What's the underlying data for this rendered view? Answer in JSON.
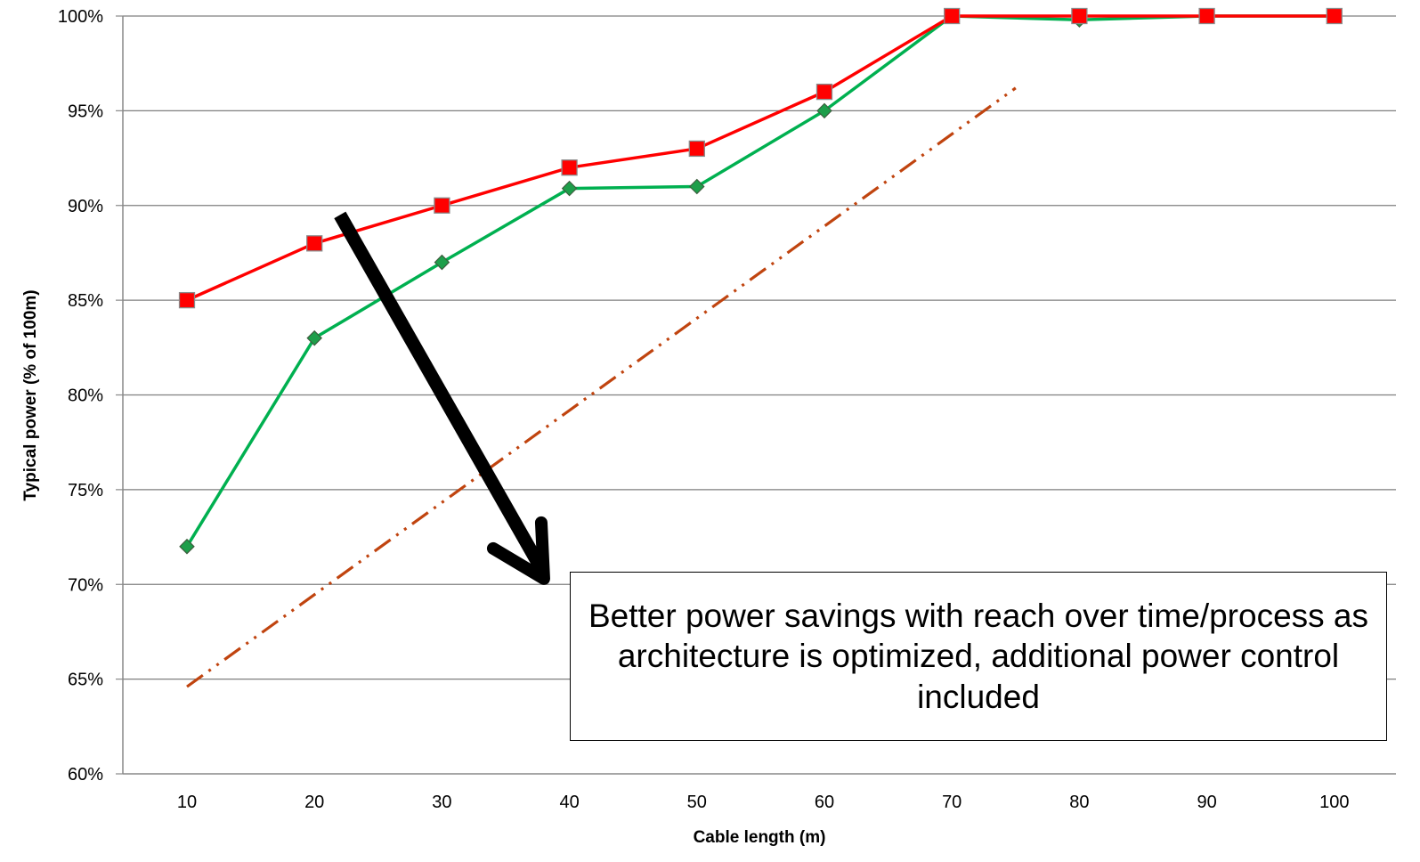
{
  "chart_data": {
    "type": "line",
    "xlabel": "Cable length (m)",
    "ylabel": "Typical power  (% of 100m)",
    "ylim": [
      60,
      100
    ],
    "yticks": [
      "60%",
      "65%",
      "70%",
      "75%",
      "80%",
      "85%",
      "90%",
      "95%",
      "100%"
    ],
    "grid": true,
    "categories": [
      "10",
      "20",
      "30",
      "40",
      "50",
      "60",
      "70",
      "80",
      "90",
      "100"
    ],
    "series": [
      {
        "color": "#FF0000",
        "marker": "square",
        "values": [
          85,
          88,
          90,
          92,
          93,
          96,
          100,
          100,
          100,
          100
        ]
      },
      {
        "color": "#00B050",
        "marker": "diamond",
        "values": [
          72,
          83,
          87,
          90.9,
          91,
          95,
          100,
          99.8,
          100,
          100
        ]
      }
    ],
    "trend": {
      "color": "#C0440F",
      "style": "dash-dot-dot",
      "from": [
        10,
        64.6
      ],
      "to": [
        75,
        96.2
      ]
    },
    "arrow": {
      "color": "#000000",
      "from": [
        22,
        89.5
      ],
      "to": [
        38,
        70.3
      ]
    },
    "annotation": "Better power savings with reach over time/process as architecture is optimized, additional power control included"
  }
}
